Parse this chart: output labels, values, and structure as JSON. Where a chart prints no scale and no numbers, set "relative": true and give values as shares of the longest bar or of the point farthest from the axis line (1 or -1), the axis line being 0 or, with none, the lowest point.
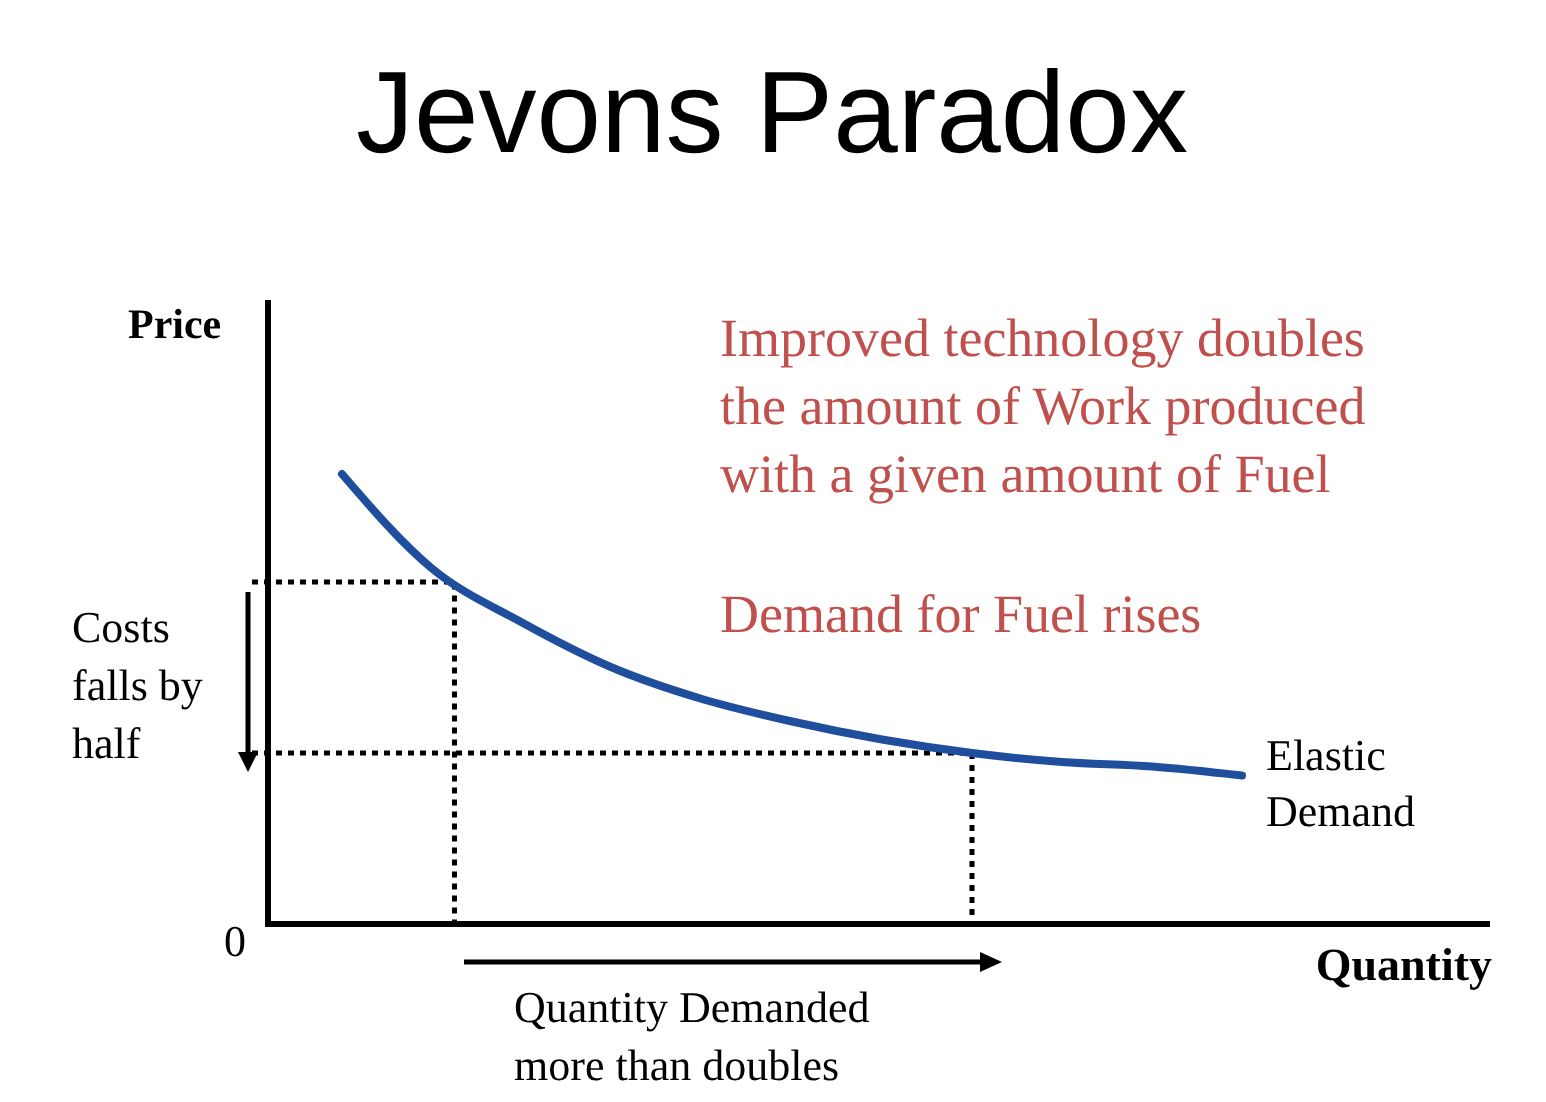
{
  "chart_data": {
    "type": "line",
    "title": "Jevons Paradox",
    "xlabel": "Quantity",
    "ylabel": "Price",
    "relative": true,
    "categories": [
      null,
      null,
      null,
      null,
      null,
      null,
      null,
      null,
      null,
      null,
      null,
      null,
      null,
      null
    ],
    "series": [
      {
        "name": "Elastic Demand",
        "color": "#1f4e9c",
        "values": [
          null,
          1,
          0.79,
          0.67,
          0.57,
          0.5,
          0.45,
          0.41,
          0.38,
          0.36,
          0.35,
          0.33,
          null,
          null
        ]
      }
    ],
    "ref_lines": [
      {
        "axis": "y",
        "value": 0.76,
        "line_style": "dotted",
        "color": "#000000"
      },
      {
        "axis": "y",
        "value": 0.38,
        "line_style": "dotted",
        "color": "#000000"
      }
    ],
    "annotations": [
      "Improved technology doubles\nthe amount of Work produced\nwith a given amount of Fuel",
      "Demand for Fuel rises",
      "Costs\nfalls by\nhalf",
      "Quantity Demanded\nmore than doubles",
      "0"
    ]
  }
}
